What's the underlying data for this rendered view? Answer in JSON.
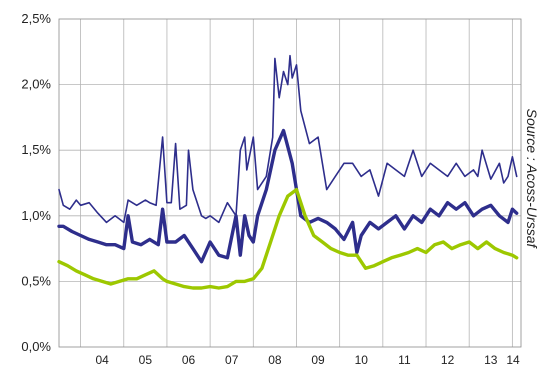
{
  "chart_data": {
    "type": "line",
    "grid": true,
    "source_label": "Source : Acoss-Urssaf",
    "x_tick_labels": [
      "04",
      "05",
      "06",
      "07",
      "08",
      "09",
      "10",
      "11",
      "12",
      "13",
      "14"
    ],
    "x_range": [
      2003.5,
      2014.2
    ],
    "y_tick_labels": [
      "0,0%",
      "0,5%",
      "1,0%",
      "1,5%",
      "2,0%",
      "2,5%"
    ],
    "y_ticks": [
      0,
      0.5,
      1.0,
      1.5,
      2.0,
      2.5
    ],
    "ylim": [
      0,
      2.5
    ],
    "series": [
      {
        "color": "#2e2e8c",
        "line_style": "thin",
        "x": [
          2003.5,
          2003.6,
          2003.75,
          2003.9,
          2004.0,
          2004.2,
          2004.4,
          2004.6,
          2004.8,
          2005.0,
          2005.1,
          2005.3,
          2005.5,
          2005.6,
          2005.75,
          2005.9,
          2006.0,
          2006.1,
          2006.2,
          2006.3,
          2006.45,
          2006.5,
          2006.6,
          2006.8,
          2006.9,
          2007.0,
          2007.2,
          2007.4,
          2007.6,
          2007.7,
          2007.8,
          2007.85,
          2008.0,
          2008.1,
          2008.3,
          2008.45,
          2008.5,
          2008.6,
          2008.7,
          2008.8,
          2008.85,
          2008.9,
          2009.0,
          2009.1,
          2009.3,
          2009.5,
          2009.7,
          2009.9,
          2010.1,
          2010.3,
          2010.5,
          2010.7,
          2010.9,
          2011.1,
          2011.3,
          2011.5,
          2011.7,
          2011.9,
          2012.1,
          2012.3,
          2012.5,
          2012.7,
          2012.9,
          2013.1,
          2013.2,
          2013.3,
          2013.5,
          2013.7,
          2013.8,
          2013.9,
          2014.0,
          2014.1
        ],
        "values": [
          1.2,
          1.08,
          1.05,
          1.12,
          1.08,
          1.1,
          1.02,
          0.95,
          1.0,
          0.95,
          1.12,
          1.08,
          1.12,
          1.1,
          1.08,
          1.6,
          1.1,
          1.1,
          1.55,
          1.05,
          1.08,
          1.5,
          1.2,
          1.0,
          0.98,
          1.0,
          0.95,
          1.1,
          1.0,
          1.5,
          1.6,
          1.35,
          1.6,
          1.2,
          1.3,
          1.6,
          2.2,
          1.9,
          2.1,
          2.0,
          2.22,
          2.05,
          2.15,
          1.8,
          1.55,
          1.6,
          1.2,
          1.3,
          1.4,
          1.4,
          1.3,
          1.35,
          1.15,
          1.4,
          1.35,
          1.3,
          1.5,
          1.3,
          1.4,
          1.35,
          1.3,
          1.4,
          1.3,
          1.35,
          1.3,
          1.5,
          1.28,
          1.4,
          1.25,
          1.3,
          1.45,
          1.3
        ]
      },
      {
        "color": "#2e2e8c",
        "line_style": "thick",
        "x": [
          2003.5,
          2003.6,
          2003.8,
          2004.0,
          2004.2,
          2004.4,
          2004.6,
          2004.8,
          2005.0,
          2005.1,
          2005.2,
          2005.4,
          2005.6,
          2005.8,
          2005.9,
          2006.0,
          2006.2,
          2006.4,
          2006.6,
          2006.8,
          2007.0,
          2007.2,
          2007.4,
          2007.6,
          2007.7,
          2007.8,
          2007.9,
          2008.0,
          2008.1,
          2008.3,
          2008.5,
          2008.7,
          2008.9,
          2009.0,
          2009.1,
          2009.3,
          2009.5,
          2009.7,
          2009.9,
          2010.1,
          2010.3,
          2010.4,
          2010.5,
          2010.7,
          2010.9,
          2011.1,
          2011.3,
          2011.5,
          2011.7,
          2011.9,
          2012.1,
          2012.3,
          2012.5,
          2012.7,
          2012.9,
          2013.1,
          2013.3,
          2013.5,
          2013.7,
          2013.9,
          2014.0,
          2014.1
        ],
        "values": [
          0.92,
          0.92,
          0.88,
          0.85,
          0.82,
          0.8,
          0.78,
          0.78,
          0.75,
          1.0,
          0.8,
          0.78,
          0.82,
          0.78,
          1.05,
          0.8,
          0.8,
          0.85,
          0.75,
          0.65,
          0.8,
          0.7,
          0.68,
          1.0,
          0.7,
          1.0,
          0.85,
          0.8,
          1.0,
          1.2,
          1.5,
          1.65,
          1.4,
          1.2,
          1.0,
          0.95,
          0.98,
          0.95,
          0.9,
          0.82,
          0.95,
          0.72,
          0.85,
          0.95,
          0.9,
          0.95,
          1.0,
          0.9,
          1.0,
          0.95,
          1.05,
          1.0,
          1.1,
          1.05,
          1.1,
          1.0,
          1.05,
          1.08,
          1.0,
          0.95,
          1.05,
          1.02
        ]
      },
      {
        "color": "#9dc800",
        "line_style": "thick",
        "x": [
          2003.5,
          2003.7,
          2003.9,
          2004.1,
          2004.3,
          2004.5,
          2004.7,
          2004.9,
          2005.1,
          2005.3,
          2005.5,
          2005.7,
          2005.9,
          2006.0,
          2006.2,
          2006.4,
          2006.6,
          2006.8,
          2007.0,
          2007.2,
          2007.4,
          2007.6,
          2007.8,
          2008.0,
          2008.2,
          2008.4,
          2008.6,
          2008.8,
          2009.0,
          2009.2,
          2009.4,
          2009.6,
          2009.8,
          2010.0,
          2010.2,
          2010.4,
          2010.6,
          2010.8,
          2011.0,
          2011.2,
          2011.4,
          2011.6,
          2011.8,
          2012.0,
          2012.2,
          2012.4,
          2012.6,
          2012.8,
          2013.0,
          2013.2,
          2013.4,
          2013.6,
          2013.8,
          2014.0,
          2014.1
        ],
        "values": [
          0.65,
          0.62,
          0.58,
          0.55,
          0.52,
          0.5,
          0.48,
          0.5,
          0.52,
          0.52,
          0.55,
          0.58,
          0.52,
          0.5,
          0.48,
          0.46,
          0.45,
          0.45,
          0.46,
          0.45,
          0.46,
          0.5,
          0.5,
          0.52,
          0.6,
          0.8,
          1.0,
          1.15,
          1.2,
          1.0,
          0.85,
          0.8,
          0.75,
          0.72,
          0.7,
          0.7,
          0.6,
          0.62,
          0.65,
          0.68,
          0.7,
          0.72,
          0.75,
          0.72,
          0.78,
          0.8,
          0.75,
          0.78,
          0.8,
          0.75,
          0.8,
          0.75,
          0.72,
          0.7,
          0.68
        ]
      }
    ]
  }
}
